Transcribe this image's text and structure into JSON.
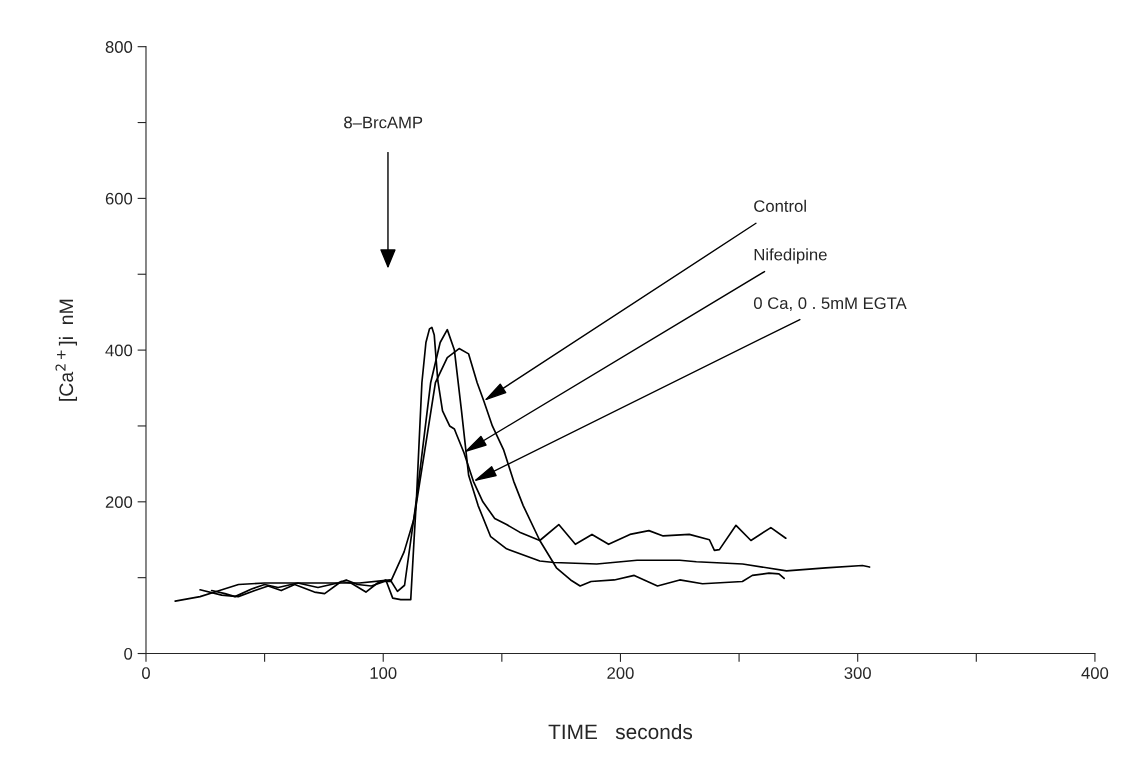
{
  "chart_data": {
    "type": "line",
    "xlabel": "TIME   seconds",
    "ylabel": "[Ca$^{2+}$]i  nM",
    "xlim": [
      0,
      400
    ],
    "ylim": [
      0,
      800
    ],
    "xticks": [
      0,
      {
        "value": 50,
        "label": null
      },
      100,
      {
        "value": 150,
        "label": null
      },
      200,
      {
        "value": 250,
        "label": null
      },
      300,
      {
        "value": 350,
        "label": null
      },
      400
    ],
    "yticks": [
      0,
      {
        "value": 100,
        "label": null
      },
      200,
      {
        "value": 300,
        "label": null
      },
      400,
      {
        "value": 500,
        "label": null
      },
      600,
      {
        "value": 700,
        "label": null
      },
      800
    ],
    "grid": false,
    "legend": false,
    "marker": "none",
    "line_style": "solid",
    "series": [
      {
        "color": "#000000",
        "x": [
          22.8,
          31.9,
          38.9,
          45.9,
          51.5,
          57,
          62.7,
          71,
          75.3,
          82.3,
          86.4,
          92.7,
          97.6,
          101.1,
          104,
          107.4,
          111.6,
          113,
          114,
          116.3,
          118,
          119.5,
          120.5,
          121.5,
          123,
          125,
          128,
          130,
          131,
          134,
          138,
          142,
          147,
          152,
          157.5,
          166,
          174,
          181,
          188,
          195,
          204,
          212,
          218,
          229,
          237.5,
          239.6,
          241.7,
          248.7,
          255,
          263.4,
          269.7
        ],
        "values": [
          84,
          77,
          75,
          83,
          89,
          83,
          91,
          81,
          79,
          95,
          93,
          81,
          93,
          97,
          73,
          71,
          71,
          150,
          203,
          357,
          410,
          428,
          430,
          420,
          360,
          320,
          300,
          296,
          288,
          265,
          227,
          200,
          178,
          170,
          160,
          149,
          170,
          144,
          157,
          144,
          157,
          162,
          155,
          157,
          150,
          136,
          137,
          169,
          149,
          166,
          152
        ]
      },
      {
        "color": "#000000",
        "x": [
          12.3,
          22.8,
          30,
          39,
          50,
          70,
          90,
          100,
          103,
          106,
          109,
          114,
          120,
          124,
          127,
          130,
          133,
          136,
          140,
          145.3,
          152,
          166,
          172,
          190,
          207,
          225,
          232,
          251.5,
          270,
          286.5,
          302,
          305
        ],
        "values": [
          69,
          75,
          82,
          91,
          93,
          93,
          93,
          96,
          97,
          82,
          90,
          203,
          357,
          410,
          427,
          400,
          320,
          235,
          195,
          154,
          138,
          122,
          120,
          118,
          123,
          123,
          121,
          118,
          109,
          113,
          116,
          114
        ]
      },
      {
        "color": "#000000",
        "x": [
          27.7,
          33.3,
          37.5,
          44.5,
          50,
          55.7,
          64,
          72.5,
          80.8,
          84.4,
          89.2,
          95,
          100.5,
          103.2,
          108.8,
          113,
          122,
          127,
          132,
          136,
          139.6,
          142.4,
          146,
          150.8,
          155,
          159,
          166,
          173,
          179,
          183,
          187.6,
          197.4,
          205.8,
          215.6,
          225,
          234.6,
          251.4,
          255.6,
          262.6,
          266.8,
          269
        ],
        "values": [
          83,
          79,
          75,
          85,
          91,
          87,
          93,
          87,
          93,
          97,
          91,
          89,
          95,
          95,
          134,
          178,
          357,
          390,
          402,
          395,
          357,
          333,
          300,
          268,
          227,
          195,
          149,
          113,
          97,
          89,
          95,
          97,
          103,
          89,
          97,
          92,
          95,
          103,
          106,
          105,
          99
        ]
      }
    ],
    "annotations": [
      "8–BrcAMP",
      {
        "text": "Control",
        "x": 142.4,
        "y": 333
      },
      {
        "text": "Nifedipine",
        "x": 134,
        "y": 265
      },
      {
        "text": "0 Ca, 0 . 5mM EGTA",
        "x": 138,
        "y": 227
      }
    ]
  }
}
